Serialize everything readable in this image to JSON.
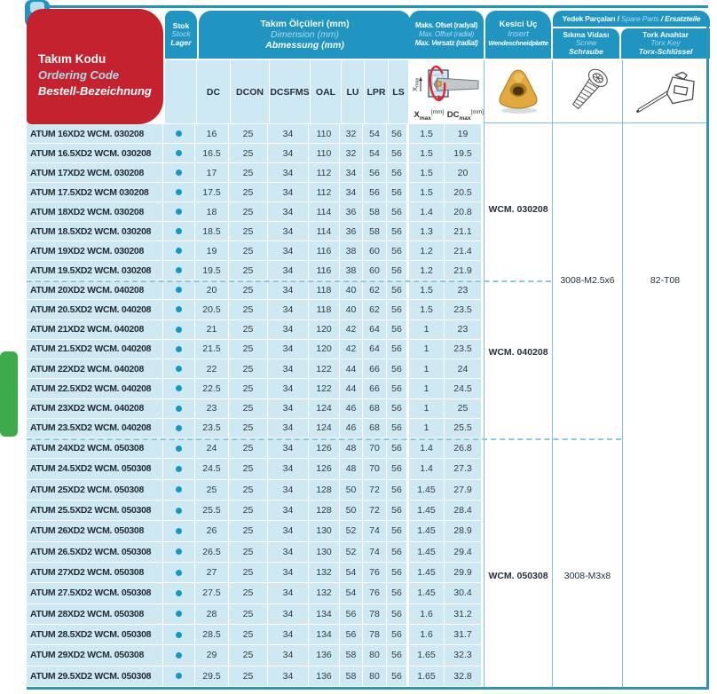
{
  "page": {
    "title_box": {
      "tr": "Takım Kodu",
      "en": "Ordering Code",
      "de": "Bestell-Bezeichnung"
    },
    "columns": {
      "stock": {
        "tr": "Stok",
        "en": "Stock",
        "de": "Lager"
      },
      "dimensions": {
        "tr": "Takım Ölçüleri (mm)",
        "en": "Dimension (mm)",
        "de": "Abmessung (mm)",
        "keys": [
          "DC",
          "DCON",
          "DCSFMS",
          "OAL",
          "LU",
          "LPR",
          "LS"
        ]
      },
      "offset": {
        "tr": "Maks. Ofset (radyal)",
        "en": "Max. Offset (radial)",
        "de": "Max. Versatz (radial)",
        "sub": [
          {
            "base": "X",
            "sub": "max",
            "unit": "[mm]"
          },
          {
            "base": "DC",
            "sub": "max",
            "unit": "[mm]"
          }
        ]
      },
      "insert": {
        "tr": "Kesici Uç",
        "en": "Insert",
        "de": "Wendeschneidplatte"
      },
      "spare_parts": {
        "tr": "Yedek Parçaları /",
        "en": "Spare Parts",
        "de": "/ Ersatzteile"
      },
      "screw": {
        "tr": "Sıkma Vidası",
        "en": "Screw",
        "de": "Schraube"
      },
      "torx": {
        "tr": "Tork Anahtar",
        "en": "Torx Key",
        "de": "Torx-Schlüssel"
      }
    },
    "groups": [
      {
        "insert": "WCM. 030208",
        "rows": [
          [
            "ATUM 16XD2 WCM. 030208",
            16,
            25,
            34,
            110,
            32,
            54,
            56,
            1.5,
            19
          ],
          [
            "ATUM 16.5XD2 WCM. 030208",
            16.5,
            25,
            34,
            110,
            32,
            54,
            56,
            1.5,
            19.5
          ],
          [
            "ATUM 17XD2 WCM. 030208",
            17,
            25,
            34,
            112,
            34,
            56,
            56,
            1.5,
            20
          ],
          [
            "ATUM 17.5XD2 WCM 030208",
            17.5,
            25,
            34,
            112,
            34,
            56,
            56,
            1.5,
            20.5
          ],
          [
            "ATUM 18XD2 WCM. 030208",
            18,
            25,
            34,
            114,
            36,
            58,
            56,
            1.4,
            20.8
          ],
          [
            "ATUM 18.5XD2 WCM. 030208",
            18.5,
            25,
            34,
            114,
            36,
            58,
            56,
            1.3,
            21.1
          ],
          [
            "ATUM 19XD2 WCM. 030208",
            19,
            25,
            34,
            116,
            38,
            60,
            56,
            1.2,
            21.4
          ],
          [
            "ATUM 19.5XD2 WCM. 030208",
            19.5,
            25,
            34,
            116,
            38,
            60,
            56,
            1.2,
            21.9
          ]
        ]
      },
      {
        "insert": "WCM. 040208",
        "rows": [
          [
            "ATUM 20XD2 WCM. 040208",
            20,
            25,
            34,
            118,
            40,
            62,
            56,
            1.5,
            23
          ],
          [
            "ATUM 20.5XD2 WCM. 040208",
            20.5,
            25,
            34,
            118,
            40,
            62,
            56,
            1.5,
            23.5
          ],
          [
            "ATUM 21XD2 WCM. 040208",
            21,
            25,
            34,
            120,
            42,
            64,
            56,
            1,
            23
          ],
          [
            "ATUM 21.5XD2 WCM. 040208",
            21.5,
            25,
            34,
            120,
            42,
            64,
            56,
            1,
            23.5
          ],
          [
            "ATUM 22XD2 WCM. 040208",
            22,
            25,
            34,
            122,
            44,
            66,
            56,
            1,
            24
          ],
          [
            "ATUM 22.5XD2 WCM. 040208",
            22.5,
            25,
            34,
            122,
            44,
            66,
            56,
            1,
            24.5
          ],
          [
            "ATUM 23XD2 WCM. 040208",
            23,
            25,
            34,
            124,
            46,
            68,
            56,
            1,
            25
          ],
          [
            "ATUM 23.5XD2 WCM. 040208",
            23.5,
            25,
            34,
            124,
            46,
            68,
            56,
            1,
            25.5
          ]
        ]
      },
      {
        "insert": "WCM. 050308",
        "rows": [
          [
            "ATUM 24XD2 WCM. 050308",
            24,
            25,
            34,
            126,
            48,
            70,
            56,
            1.4,
            26.8
          ],
          [
            "ATUM 24.5XD2 WCM. 050308",
            24.5,
            25,
            34,
            126,
            48,
            70,
            56,
            1.4,
            27.3
          ],
          [
            "ATUM 25XD2 WCM. 050308",
            25,
            25,
            34,
            128,
            50,
            72,
            56,
            1.45,
            27.9
          ],
          [
            "ATUM 25.5XD2 WCM. 050308",
            25.5,
            25,
            34,
            128,
            50,
            72,
            56,
            1.45,
            28.4
          ],
          [
            "ATUM 26XD2 WCM. 050308",
            26,
            25,
            34,
            130,
            52,
            74,
            56,
            1.45,
            28.9
          ],
          [
            "ATUM 26.5XD2 WCM. 050308",
            26.5,
            25,
            34,
            130,
            52,
            74,
            56,
            1.45,
            29.4
          ],
          [
            "ATUM 27XD2 WCM. 050308",
            27,
            25,
            34,
            132,
            54,
            76,
            56,
            1.45,
            29.9
          ],
          [
            "ATUM 27.5XD2 WCM. 050308",
            27.5,
            25,
            34,
            132,
            54,
            76,
            56,
            1.45,
            30.4
          ],
          [
            "ATUM 28XD2 WCM. 050308",
            28,
            25,
            34,
            134,
            56,
            78,
            56,
            1.6,
            31.2
          ],
          [
            "ATUM 28.5XD2 WCM. 050308",
            28.5,
            25,
            34,
            134,
            56,
            78,
            56,
            1.6,
            31.7
          ],
          [
            "ATUM 29XD2 WCM. 050308",
            29,
            25,
            34,
            136,
            58,
            80,
            56,
            1.65,
            32.3
          ],
          [
            "ATUM 29.5XD2 WCM. 050308",
            29.5,
            25,
            34,
            136,
            58,
            80,
            56,
            1.65,
            32.8
          ]
        ]
      }
    ],
    "screw_labels": [
      "3008-M2.5x6",
      "3008-M3x8"
    ],
    "torx_labels": [
      "82-T08"
    ],
    "stock_available_all_rows": true,
    "colors": {
      "header_blue": "#2095c1",
      "header_blue_light_text": "#a9dbec",
      "red": "#c4222f",
      "row_bg": "#cfe9f4",
      "stock_dot": "#1798c3",
      "green_tab": "#3dab4c",
      "border_teal": "#2d95b5",
      "dashed_line": "#8cc9e0",
      "insert_yellow": "#e3a93f"
    }
  }
}
